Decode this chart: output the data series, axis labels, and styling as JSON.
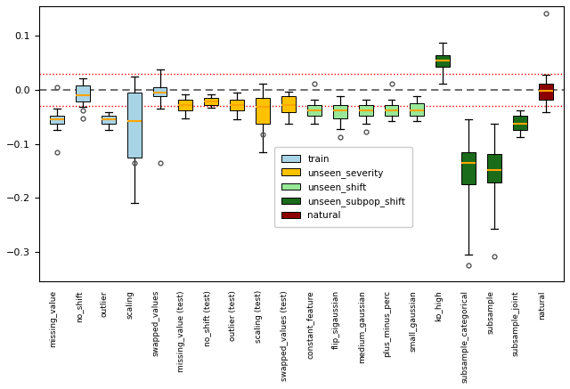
{
  "categories": [
    "missing_value",
    "no_shift",
    "outlier",
    "scaling",
    "swapped_values",
    "missing_value (test)",
    "no_shift (test)",
    "outlier (test)",
    "scaling (test)",
    "swapped_values (test)",
    "constant_feature",
    "flip_sigaussian",
    "medium_gaussian",
    "plus_minus_perc",
    "small_gaussian",
    "ko_high",
    "subsample_categorical",
    "subsample",
    "subsample_joint",
    "natural"
  ],
  "color_hex": [
    "#a8d4e6",
    "#a8d4e6",
    "#a8d4e6",
    "#a8d4e6",
    "#a8d4e6",
    "#ffc200",
    "#ffc200",
    "#ffc200",
    "#ffc200",
    "#ffc200",
    "#98e898",
    "#98e898",
    "#98e898",
    "#98e898",
    "#98e898",
    "#1a6b1a",
    "#1a6b1a",
    "#1a6b1a",
    "#1a6b1a",
    "#8b0000"
  ],
  "box_stats": [
    {
      "med": -0.055,
      "q1": -0.062,
      "q3": -0.048,
      "whislo": -0.075,
      "whishi": -0.035,
      "fliers": [
        -0.115,
        0.005
      ]
    },
    {
      "med": -0.01,
      "q1": -0.022,
      "q3": 0.008,
      "whislo": -0.032,
      "whishi": 0.022,
      "fliers": [
        -0.052,
        -0.038
      ]
    },
    {
      "med": -0.055,
      "q1": -0.063,
      "q3": -0.048,
      "whislo": -0.075,
      "whishi": -0.042,
      "fliers": []
    },
    {
      "med": -0.058,
      "q1": -0.125,
      "q3": -0.005,
      "whislo": -0.21,
      "whishi": 0.025,
      "fliers": [
        -0.135
      ]
    },
    {
      "med": -0.005,
      "q1": -0.012,
      "q3": 0.005,
      "whislo": -0.035,
      "whishi": 0.038,
      "fliers": [
        -0.135
      ]
    },
    {
      "med": -0.028,
      "q1": -0.038,
      "q3": -0.018,
      "whislo": -0.052,
      "whishi": -0.008,
      "fliers": []
    },
    {
      "med": -0.022,
      "q1": -0.028,
      "q3": -0.015,
      "whislo": -0.033,
      "whishi": -0.008,
      "fliers": []
    },
    {
      "med": -0.028,
      "q1": -0.038,
      "q3": -0.018,
      "whislo": -0.055,
      "whishi": -0.005,
      "fliers": []
    },
    {
      "med": -0.032,
      "q1": -0.062,
      "q3": -0.015,
      "whislo": -0.115,
      "whishi": 0.012,
      "fliers": [
        -0.082
      ]
    },
    {
      "med": -0.028,
      "q1": -0.042,
      "q3": -0.012,
      "whislo": -0.062,
      "whishi": -0.003,
      "fliers": []
    },
    {
      "med": -0.038,
      "q1": -0.048,
      "q3": -0.028,
      "whislo": -0.062,
      "whishi": -0.018,
      "fliers": [
        0.012
      ]
    },
    {
      "med": -0.038,
      "q1": -0.052,
      "q3": -0.028,
      "whislo": -0.072,
      "whishi": -0.012,
      "fliers": [
        -0.088
      ]
    },
    {
      "med": -0.038,
      "q1": -0.048,
      "q3": -0.028,
      "whislo": -0.062,
      "whishi": -0.018,
      "fliers": [
        -0.078
      ]
    },
    {
      "med": -0.038,
      "q1": -0.048,
      "q3": -0.028,
      "whislo": -0.058,
      "whishi": -0.018,
      "fliers": [
        0.012
      ]
    },
    {
      "med": -0.038,
      "q1": -0.048,
      "q3": -0.025,
      "whislo": -0.058,
      "whishi": -0.012,
      "fliers": []
    },
    {
      "med": 0.055,
      "q1": 0.042,
      "q3": 0.065,
      "whislo": 0.012,
      "whishi": 0.088,
      "fliers": []
    },
    {
      "med": -0.135,
      "q1": -0.175,
      "q3": -0.115,
      "whislo": -0.305,
      "whishi": -0.055,
      "fliers": [
        -0.325
      ]
    },
    {
      "med": -0.148,
      "q1": -0.172,
      "q3": -0.118,
      "whislo": -0.258,
      "whishi": -0.062,
      "fliers": [
        -0.308
      ]
    },
    {
      "med": -0.062,
      "q1": -0.075,
      "q3": -0.048,
      "whislo": -0.088,
      "whishi": -0.038,
      "fliers": []
    },
    {
      "med": -0.002,
      "q1": -0.018,
      "q3": 0.012,
      "whislo": -0.042,
      "whishi": 0.028,
      "fliers": [
        0.142
      ]
    }
  ],
  "hline_black": 0.0,
  "hline_red1": 0.03,
  "hline_red2": -0.03,
  "ylim": [
    -0.355,
    0.155
  ],
  "yticks": [
    -0.3,
    -0.2,
    -0.1,
    0.0,
    0.1
  ],
  "legend_labels": [
    "train",
    "unseen_severity",
    "unseen_shift",
    "unseen_subpop_shift",
    "natural"
  ],
  "legend_colors": [
    "#a8d4e6",
    "#ffc200",
    "#98e898",
    "#1a6b1a",
    "#8b0000"
  ],
  "figsize": [
    6.4,
    4.37
  ],
  "dpi": 100
}
